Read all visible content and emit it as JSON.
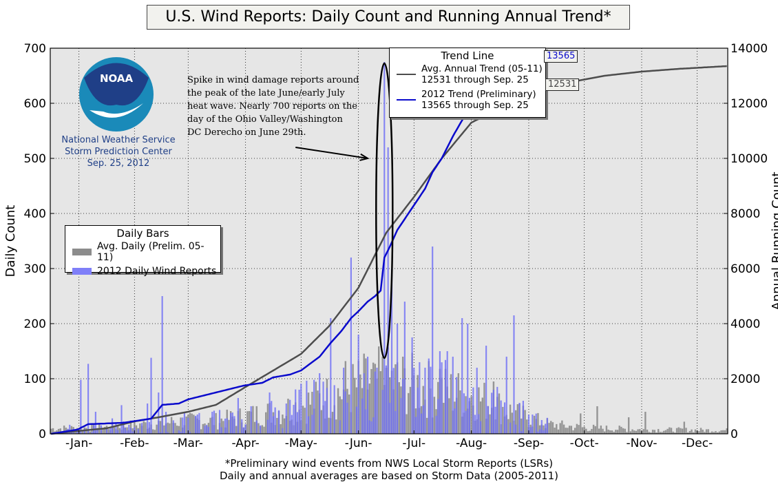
{
  "title": "U.S. Wind Reports: Daily Count and Running Annual Trend*",
  "footnote": {
    "line1": "*Preliminary wind events from NWS Local Storm Reports (LSRs)",
    "line2": "Daily and annual averages are based on Storm Data (2005-2011)"
  },
  "noaa": {
    "logo_text": "NOAA",
    "line1": "National Weather Service",
    "line2": "Storm Prediction Center",
    "line3": "Sep. 25, 2012"
  },
  "annotation": "Spike in wind damage reports around the peak of the late June/early July heat wave. Nearly 700 reports on the day of the Ohio Valley/Washington DC Derecho on June 29th.",
  "legend_bars": {
    "title": "Daily Bars",
    "items": [
      "Avg. Daily (Prelim. 05-11)",
      "2012 Daily Wind Reports"
    ]
  },
  "legend_trend": {
    "title": "Trend Line",
    "items": [
      {
        "line1": "Avg. Annual Trend (05-11)",
        "line2": "12531 through Sep. 25"
      },
      {
        "line1": "2012 Trend (Preliminary)",
        "line2": "13565 through Sep. 25"
      }
    ]
  },
  "value_labels": {
    "trend_2012": "13565",
    "trend_avg": "12531"
  },
  "colors": {
    "plot_bg": "#e6e6e6",
    "avg_bar": "#8c8c8c",
    "bar_2012": "#6f6ff5",
    "avg_line": "#4d4d4d",
    "line_2012": "#0a0acc",
    "noaa_blue": "#1f3f87"
  },
  "chart_data": {
    "type": "bar",
    "title": "U.S. Wind Reports: Daily Count and Running Annual Trend*",
    "xlabel": "",
    "ylabel": "Daily Count",
    "y2label": "Annual Running Count",
    "ylim": [
      0,
      700
    ],
    "y2lim": [
      0,
      14000
    ],
    "yticks": [
      0,
      100,
      200,
      300,
      400,
      500,
      600,
      700
    ],
    "y2ticks": [
      0,
      2000,
      4000,
      6000,
      8000,
      10000,
      12000,
      14000
    ],
    "x_range_days": [
      1,
      366
    ],
    "month_ticks": [
      {
        "label": "-Jan-",
        "day": 16
      },
      {
        "label": "-Feb-",
        "day": 46
      },
      {
        "label": "-Mar-",
        "day": 75
      },
      {
        "label": "-Apr-",
        "day": 106
      },
      {
        "label": "-May-",
        "day": 136
      },
      {
        "label": "-Jun-",
        "day": 167
      },
      {
        "label": "-Jul-",
        "day": 197
      },
      {
        "label": "-Aug-",
        "day": 228
      },
      {
        "label": "-Sep-",
        "day": 259
      },
      {
        "label": "-Oct-",
        "day": 289
      },
      {
        "label": "-Nov-",
        "day": 320
      },
      {
        "label": "-Dec-",
        "day": 350
      }
    ],
    "grid": true,
    "series": [
      {
        "name": "Avg. Daily (Prelim. 05-11)",
        "kind": "bar",
        "envelope": [
          [
            1,
            12
          ],
          [
            30,
            15
          ],
          [
            45,
            20
          ],
          [
            60,
            25
          ],
          [
            75,
            30
          ],
          [
            90,
            30
          ],
          [
            105,
            40
          ],
          [
            120,
            50
          ],
          [
            135,
            65
          ],
          [
            150,
            85
          ],
          [
            160,
            100
          ],
          [
            170,
            115
          ],
          [
            180,
            125
          ],
          [
            190,
            120
          ],
          [
            200,
            110
          ],
          [
            210,
            100
          ],
          [
            220,
            95
          ],
          [
            230,
            85
          ],
          [
            240,
            70
          ],
          [
            250,
            50
          ],
          [
            260,
            35
          ],
          [
            270,
            22
          ],
          [
            290,
            14
          ],
          [
            320,
            10
          ],
          [
            366,
            8
          ]
        ],
        "peaks": [
          {
            "day": 160,
            "value": 132
          },
          {
            "day": 176,
            "value": 127
          },
          {
            "day": 182,
            "value": 120
          },
          {
            "day": 211,
            "value": 118
          },
          {
            "day": 221,
            "value": 110
          },
          {
            "day": 221,
            "value": 110
          },
          {
            "day": 240,
            "value": 95
          },
          {
            "day": 287,
            "value": 37
          },
          {
            "day": 296,
            "value": 50
          },
          {
            "day": 313,
            "value": 30
          },
          {
            "day": 322,
            "value": 40
          },
          {
            "day": 343,
            "value": 22
          }
        ]
      },
      {
        "name": "2012 Daily Wind Reports",
        "kind": "bar",
        "season_end_day": 269,
        "peaks": [
          {
            "day": 17,
            "value": 98
          },
          {
            "day": 21,
            "value": 127
          },
          {
            "day": 25,
            "value": 40
          },
          {
            "day": 34,
            "value": 28
          },
          {
            "day": 39,
            "value": 52
          },
          {
            "day": 53,
            "value": 55
          },
          {
            "day": 55,
            "value": 138
          },
          {
            "day": 59,
            "value": 75
          },
          {
            "day": 61,
            "value": 250
          },
          {
            "day": 63,
            "value": 40
          },
          {
            "day": 80,
            "value": 35
          },
          {
            "day": 89,
            "value": 42
          },
          {
            "day": 102,
            "value": 65
          },
          {
            "day": 109,
            "value": 50
          },
          {
            "day": 119,
            "value": 75
          },
          {
            "day": 128,
            "value": 55
          },
          {
            "day": 135,
            "value": 80
          },
          {
            "day": 146,
            "value": 110
          },
          {
            "day": 152,
            "value": 210
          },
          {
            "day": 159,
            "value": 120
          },
          {
            "day": 163,
            "value": 320
          },
          {
            "day": 167,
            "value": 180
          },
          {
            "day": 172,
            "value": 140
          },
          {
            "day": 177,
            "value": 120
          },
          {
            "day": 181,
            "value": 675
          },
          {
            "day": 183,
            "value": 520
          },
          {
            "day": 185,
            "value": 300
          },
          {
            "day": 188,
            "value": 200
          },
          {
            "day": 192,
            "value": 240
          },
          {
            "day": 196,
            "value": 175
          },
          {
            "day": 200,
            "value": 130
          },
          {
            "day": 203,
            "value": 120
          },
          {
            "day": 207,
            "value": 340
          },
          {
            "day": 211,
            "value": 150
          },
          {
            "day": 215,
            "value": 150
          },
          {
            "day": 218,
            "value": 140
          },
          {
            "day": 223,
            "value": 210
          },
          {
            "day": 226,
            "value": 200
          },
          {
            "day": 231,
            "value": 120
          },
          {
            "day": 236,
            "value": 160
          },
          {
            "day": 240,
            "value": 80
          },
          {
            "day": 247,
            "value": 140
          },
          {
            "day": 251,
            "value": 215
          },
          {
            "day": 256,
            "value": 60
          },
          {
            "day": 261,
            "value": 35
          },
          {
            "day": 266,
            "value": 25
          }
        ]
      },
      {
        "name": "Avg. Annual Trend (05-11)",
        "kind": "line",
        "axis": "right",
        "points": [
          [
            1,
            0
          ],
          [
            15,
            100
          ],
          [
            31,
            200
          ],
          [
            46,
            450
          ],
          [
            59,
            600
          ],
          [
            75,
            800
          ],
          [
            90,
            1050
          ],
          [
            106,
            1700
          ],
          [
            121,
            2300
          ],
          [
            136,
            2900
          ],
          [
            151,
            3900
          ],
          [
            167,
            5300
          ],
          [
            182,
            7300
          ],
          [
            197,
            8600
          ],
          [
            212,
            10000
          ],
          [
            228,
            11300
          ],
          [
            243,
            11800
          ],
          [
            258,
            12200
          ],
          [
            269,
            12531
          ],
          [
            280,
            12750
          ],
          [
            300,
            13000
          ],
          [
            320,
            13150
          ],
          [
            340,
            13250
          ],
          [
            366,
            13350
          ]
        ]
      },
      {
        "name": "2012 Trend (Preliminary)",
        "kind": "line",
        "axis": "right",
        "points": [
          [
            1,
            0
          ],
          [
            15,
            150
          ],
          [
            21,
            350
          ],
          [
            40,
            400
          ],
          [
            55,
            550
          ],
          [
            61,
            1050
          ],
          [
            70,
            1100
          ],
          [
            75,
            1250
          ],
          [
            90,
            1500
          ],
          [
            105,
            1750
          ],
          [
            115,
            1850
          ],
          [
            121,
            2050
          ],
          [
            130,
            2150
          ],
          [
            136,
            2300
          ],
          [
            142,
            2600
          ],
          [
            146,
            2800
          ],
          [
            152,
            3300
          ],
          [
            158,
            3750
          ],
          [
            163,
            4200
          ],
          [
            167,
            4450
          ],
          [
            172,
            4800
          ],
          [
            176,
            5000
          ],
          [
            179,
            5200
          ],
          [
            181,
            6400
          ],
          [
            184,
            6800
          ],
          [
            188,
            7400
          ],
          [
            192,
            7800
          ],
          [
            197,
            8300
          ],
          [
            203,
            8900
          ],
          [
            207,
            9500
          ],
          [
            212,
            10000
          ],
          [
            218,
            10800
          ],
          [
            224,
            11500
          ],
          [
            228,
            12000
          ],
          [
            234,
            12500
          ],
          [
            240,
            12900
          ],
          [
            247,
            13200
          ],
          [
            253,
            13400
          ],
          [
            262,
            13500
          ],
          [
            269,
            13565
          ]
        ]
      }
    ],
    "highlight": {
      "kind": "ellipse",
      "center_day": 181,
      "center_value": 405,
      "note": "Derecho spike, June 29"
    },
    "arrow": {
      "from_day": 133,
      "from_value": 520,
      "to_day": 172,
      "to_value": 500
    }
  }
}
